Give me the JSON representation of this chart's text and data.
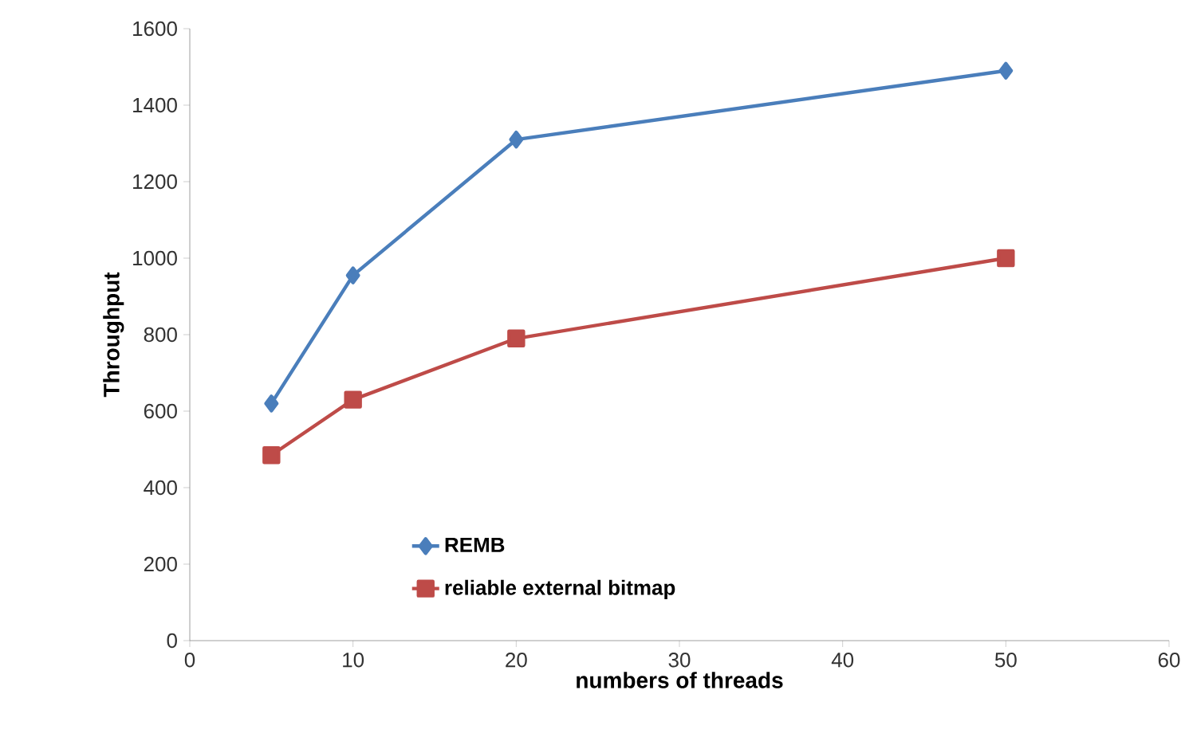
{
  "chart_data": {
    "type": "line",
    "xlabel": "numbers of threads",
    "ylabel": "Throughput",
    "xlim": [
      0,
      60
    ],
    "xticks": [
      0,
      10,
      20,
      30,
      40,
      50,
      60
    ],
    "ylim": [
      0,
      1600
    ],
    "yticks": [
      0,
      200,
      400,
      600,
      800,
      1000,
      1200,
      1400,
      1600
    ],
    "legend": "bottom",
    "line_style": "solid",
    "series": [
      {
        "name": "REMB",
        "color": "#4a7ebb",
        "marker": "diamond",
        "x": [
          5,
          10,
          20,
          50
        ],
        "values": [
          620,
          955,
          1310,
          1490
        ]
      },
      {
        "name": "reliable external bitmap",
        "color": "#be4b48",
        "marker": "square",
        "x": [
          5,
          10,
          20,
          50
        ],
        "values": [
          485,
          630,
          790,
          1000
        ]
      }
    ]
  }
}
